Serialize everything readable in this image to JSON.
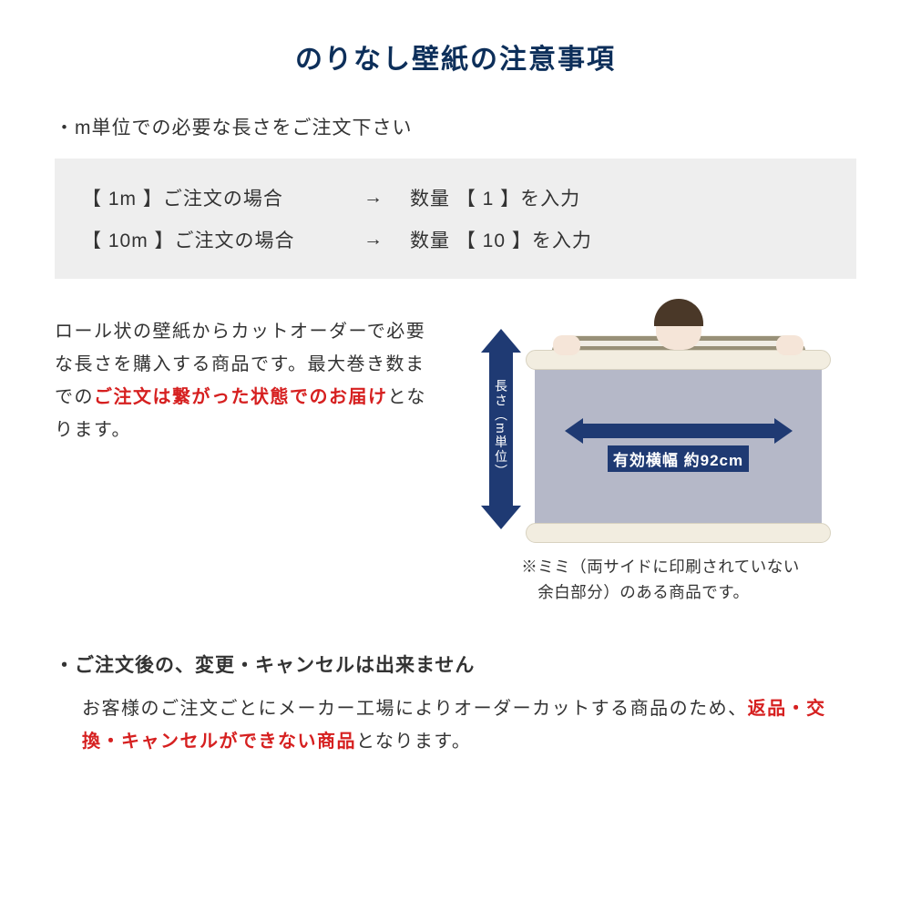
{
  "colors": {
    "title": "#0d2f5a",
    "body": "#333333",
    "emphasis": "#d62020",
    "boxBg": "#eeeeee",
    "arrowFill": "#1f3a73",
    "wallpaperSheet": "#b5b8c8",
    "rollColor": "#f2ede0"
  },
  "title": "のりなし壁紙の注意事項",
  "section1": {
    "heading": "・m単位での必要な長さをご注文下さい",
    "exampleRows": [
      {
        "left": "【 1m 】ご注文の場合",
        "arrow": "→",
        "right": "数量 【 1 】を入力"
      },
      {
        "left": "【 10m 】ご注文の場合",
        "arrow": "→",
        "right": "数量 【 10 】を入力"
      }
    ]
  },
  "middle": {
    "body_pre": "ロール状の壁紙からカットオーダーで必要な長さを購入する商品です。最大巻き数までの",
    "body_em": "ご注文は繋がった状態でのお届け",
    "body_post": "となります。",
    "diagram": {
      "verticalLabel": "長さ（m単位）",
      "verticalArrowHeight": 220,
      "widthLabel": "有効横幅 約92cm",
      "note": "※ミミ（両サイドに印刷されていない\n　余白部分）のある商品です。"
    }
  },
  "section2": {
    "heading": "・ご注文後の、変更・キャンセルは出来ません",
    "body_pre": "お客様のご注文ごとにメーカー工場によりオーダーカットする商品のため、",
    "body_em": "返品・交換・キャンセルができない商品",
    "body_post": "となります。"
  }
}
